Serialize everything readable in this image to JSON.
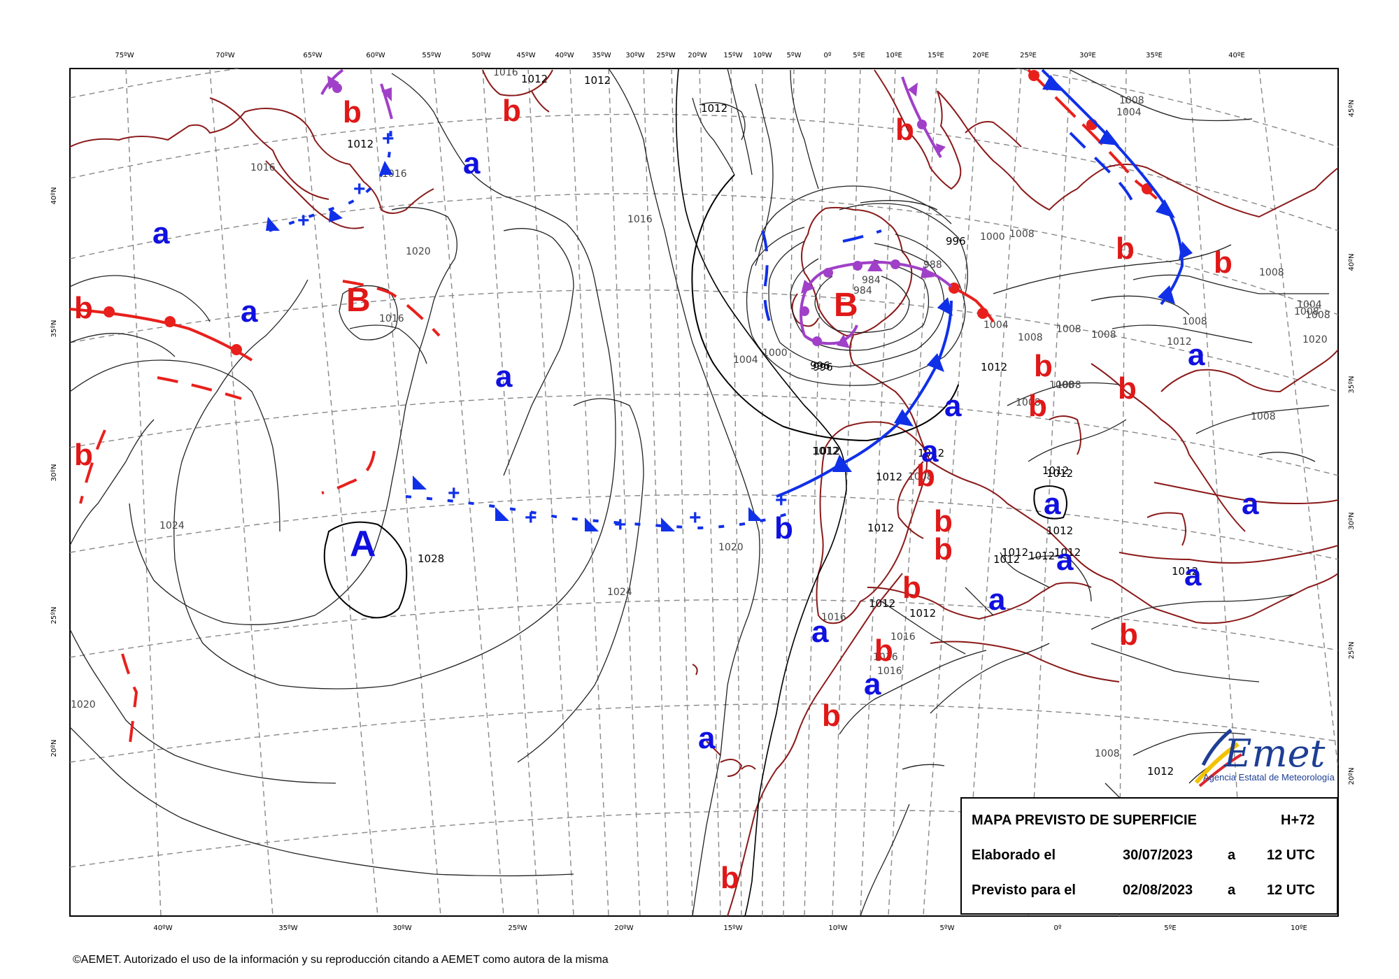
{
  "info": {
    "title": "MAPA PREVISTO DE SUPERFICIE",
    "lead": "H+72",
    "elaborado_label": "Elaborado el",
    "elaborado_date": "30/07/2023",
    "elaborado_a": "a",
    "elaborado_time": "12 UTC",
    "previsto_label": "Previsto para el",
    "previsto_date": "02/08/2023",
    "previsto_a": "a",
    "previsto_time": "12 UTC"
  },
  "logo": {
    "name": "AEMet",
    "subtitle": "Agencia Estatal de Meteorología",
    "colors": [
      "#1d3e94",
      "#f2c200",
      "#d8262e"
    ]
  },
  "copyright": "©AEMET. Autorizado el uso de la información y su reproducción citando a AEMET como autora de la misma",
  "top_axis": [
    "75ºW",
    "70ºW",
    "65ºW",
    "60ºW",
    "55ºW",
    "50ºW",
    "45ºW",
    "40ºW",
    "35ºW",
    "30ºW",
    "25ºW",
    "20ºW",
    "15ºW",
    "10ºW",
    "5ºW",
    "0º",
    "5ºE",
    "10ºE",
    "15ºE",
    "20ºE",
    "25ºE",
    "30ºE",
    "35ºE",
    "40ºE"
  ],
  "bottom_axis": [
    "40ºW",
    "35ºW",
    "30ºW",
    "25ºW",
    "20ºW",
    "15ºW",
    "10ºW",
    "5ºW",
    "0º",
    "5ºE",
    "10ºE"
  ],
  "left_axis": [
    "40ºN",
    "35ºN",
    "30ºN",
    "25ºN",
    "20ºN"
  ],
  "right_axis": [
    "45ºN",
    "40ºN",
    "35ºN",
    "30ºN",
    "25ºN",
    "20ºN"
  ],
  "isobar_labels": [
    "1012",
    "1012",
    "1012",
    "1012",
    "1016",
    "1016",
    "1016",
    "1016",
    "1020",
    "1016",
    "1024",
    "1020",
    "1028",
    "1024",
    "1020",
    "1012",
    "996",
    "1000",
    "996",
    "988",
    "984",
    "984",
    "1000",
    "1004",
    "1004",
    "996",
    "1012",
    "1012",
    "1008",
    "1012",
    "1012",
    "1012",
    "1012",
    "1012",
    "1012",
    "1008",
    "1016",
    "1016",
    "1016",
    "1016",
    "1004",
    "1008",
    "1008",
    "1008",
    "1008",
    "1008",
    "1008",
    "1008",
    "1008",
    "1008",
    "1012",
    "1012",
    "1012",
    "1012",
    "1012",
    "1012",
    "1012",
    "1012",
    "1012",
    "1008",
    "1008",
    "1008",
    "1004",
    "1008",
    "1020"
  ],
  "pressure_systems": [
    {
      "label": "b",
      "kind": "low"
    },
    {
      "label": "b",
      "kind": "low"
    },
    {
      "label": "a",
      "kind": "high"
    },
    {
      "label": "b",
      "kind": "low"
    },
    {
      "label": "a",
      "kind": "high"
    },
    {
      "label": "B",
      "kind": "low"
    },
    {
      "label": "b",
      "kind": "low"
    },
    {
      "label": "a",
      "kind": "high"
    },
    {
      "label": "a",
      "kind": "high"
    },
    {
      "label": "b",
      "kind": "low"
    },
    {
      "label": "A",
      "kind": "high"
    },
    {
      "label": "B",
      "kind": "low"
    },
    {
      "label": "b",
      "kind": "low"
    },
    {
      "label": "b",
      "kind": "low"
    },
    {
      "label": "a",
      "kind": "high"
    },
    {
      "label": "b",
      "kind": "low"
    },
    {
      "label": "b",
      "kind": "low"
    },
    {
      "label": "a",
      "kind": "high"
    },
    {
      "label": "b",
      "kind": "low"
    },
    {
      "label": "b",
      "kind": "low"
    },
    {
      "label": "a",
      "kind": "high"
    },
    {
      "label": "b",
      "kind": "low"
    },
    {
      "label": "a",
      "kind": "high"
    },
    {
      "label": "b",
      "kind": "low"
    },
    {
      "label": "b",
      "kind": "low"
    },
    {
      "label": "a",
      "kind": "high"
    },
    {
      "label": "a",
      "kind": "high"
    },
    {
      "label": "a",
      "kind": "high"
    },
    {
      "label": "a",
      "kind": "high"
    },
    {
      "label": "b",
      "kind": "low"
    },
    {
      "label": "a",
      "kind": "high"
    },
    {
      "label": "b",
      "kind": "low"
    },
    {
      "label": "b",
      "kind": "low"
    },
    {
      "label": "a",
      "kind": "high"
    },
    {
      "label": "a",
      "kind": "high"
    },
    {
      "label": "b",
      "kind": "low"
    },
    {
      "label": "b",
      "kind": "low"
    },
    {
      "label": "b",
      "kind": "low"
    }
  ],
  "colors": {
    "high": "#1010e0",
    "low": "#e01818",
    "occluded": "#a040c8",
    "coast": "#8b1a1a",
    "cold_front": "#1030e8",
    "warm_front": "#e8201c",
    "grid": "#888888"
  }
}
